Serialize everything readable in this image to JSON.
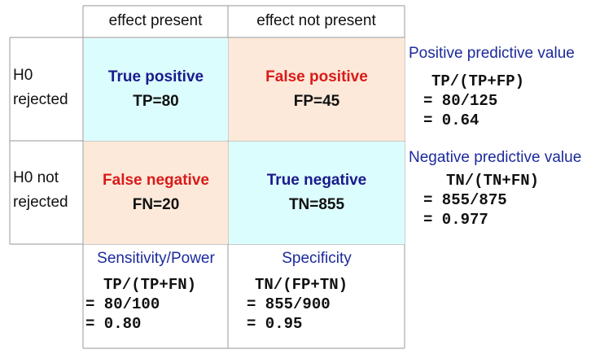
{
  "colors": {
    "positive_cell_bg": "#dcfdfe",
    "negative_cell_bg": "#fde9d9",
    "true_title": "#1a1a8c",
    "false_title": "#d81b1b",
    "metric_title": "#1c2a9c",
    "border": "#aaaaaa"
  },
  "columns": {
    "effect_present": "effect present",
    "effect_not_present": "effect not present"
  },
  "rows": {
    "h0_rejected": [
      "H0",
      "rejected"
    ],
    "h0_not_rejected": [
      "H0 not",
      "rejected"
    ]
  },
  "cells": {
    "tp": {
      "title": "True positive",
      "count": "TP=80"
    },
    "fp": {
      "title": "False positive",
      "count": "FP=45"
    },
    "fn": {
      "title": "False negative",
      "count": "FN=20"
    },
    "tn": {
      "title": "True negative",
      "count": "TN=855"
    }
  },
  "metrics": {
    "ppv": {
      "title": "Positive predictive value",
      "lines": [
        "TP/(TP+FP)",
        "= 80/125",
        "= 0.64"
      ]
    },
    "npv": {
      "title": "Negative predictive value",
      "lines": [
        "TN/(TN+FN)",
        "= 855/875",
        "= 0.977"
      ]
    },
    "sensitivity": {
      "title": "Sensitivity/Power",
      "lines": [
        "TP/(TP+FN)",
        "= 80/100",
        "= 0.80"
      ]
    },
    "specificity": {
      "title": "Specificity",
      "lines": [
        "TN/(FP+TN)",
        "= 855/900",
        "= 0.95"
      ]
    }
  }
}
